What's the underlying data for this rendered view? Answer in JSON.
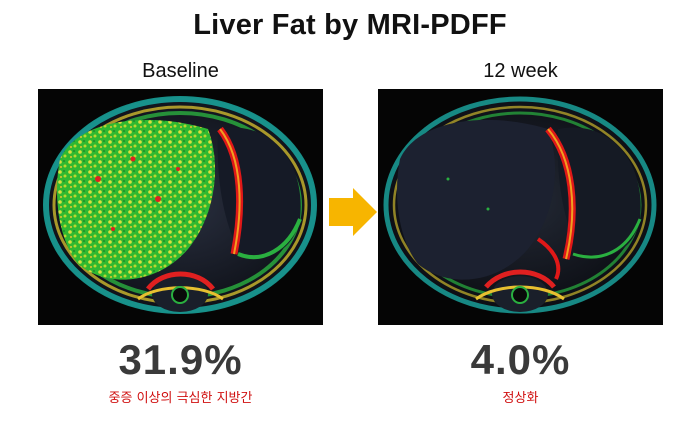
{
  "title": "Liver Fat by MRI-PDFF",
  "panels": [
    {
      "label": "Baseline",
      "value": "31.9%",
      "note": "중증 이상의 극심한 지방간"
    },
    {
      "label": "12 week",
      "value": "4.0%",
      "note": "정상화"
    }
  ],
  "colors": {
    "arrow": "#f7b500",
    "note": "#d01010",
    "value": "#3a3a3a"
  }
}
